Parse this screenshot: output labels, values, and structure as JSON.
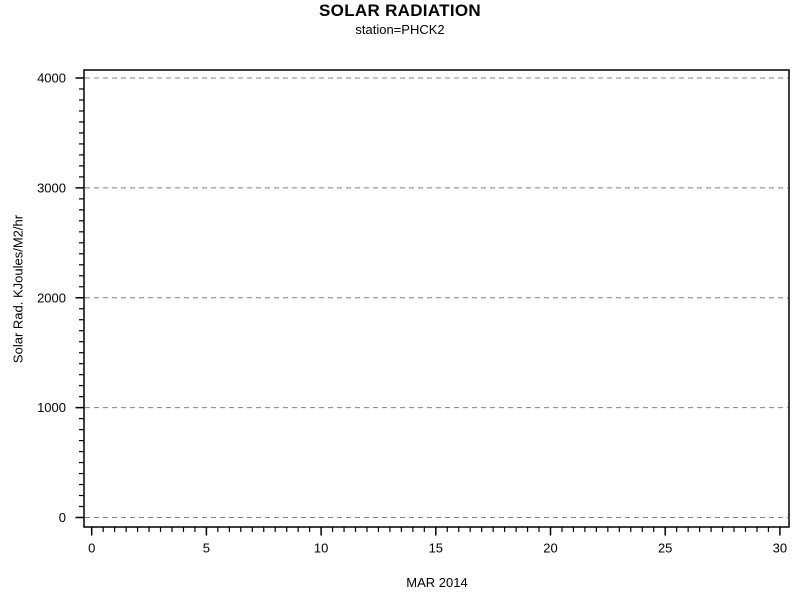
{
  "chart_data": {
    "type": "line",
    "title": "SOLAR RADIATION",
    "subtitle": "station=PHCK2",
    "xlabel": "MAR 2014",
    "ylabel": "Solar Rad. KJoules/M2/hr",
    "xlim": [
      0,
      30
    ],
    "ylim": [
      0,
      4000
    ],
    "x_major_ticks": [
      0,
      5,
      10,
      15,
      20,
      25,
      30
    ],
    "x_minor_tick_interval": 0.5,
    "y_major_ticks": [
      0,
      1000,
      2000,
      3000,
      4000
    ],
    "y_minor_tick_interval": 100,
    "grid": "horizontal dashed gridlines at y major ticks",
    "legend": "none",
    "series": [],
    "colors": {
      "gridline": "#808080",
      "axis": "#000000",
      "text": "#000000",
      "background": "#ffffff"
    }
  }
}
